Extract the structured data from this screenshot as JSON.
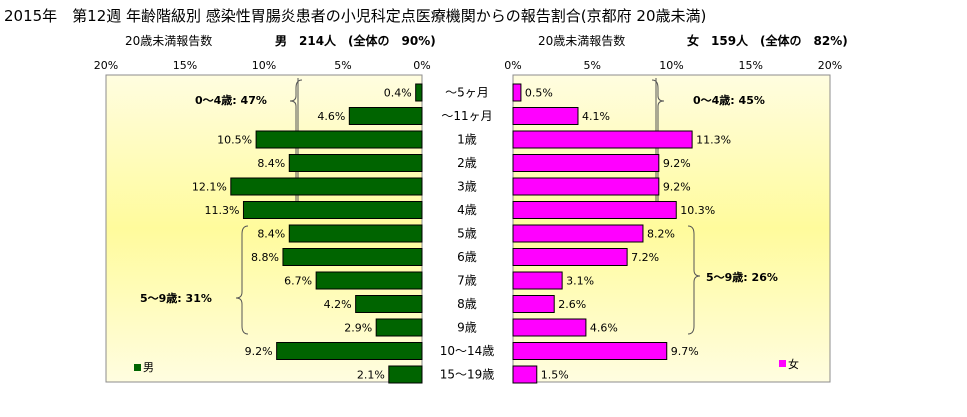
{
  "title": "2015年　第12週 年齢階級別 感染性胃腸炎患者の小児科定点医療機関からの報告割合(京都府 20歳未満)",
  "chart_data": [
    {
      "type": "bar",
      "orientation": "horizontal",
      "side": "left",
      "header_label": "20歳未満報告数",
      "header_summary": "男　214人　(全体の　90%)",
      "series": [
        {
          "name": "男",
          "color": "#006400",
          "values": [
            0.4,
            4.6,
            10.5,
            8.4,
            12.1,
            11.3,
            8.4,
            8.8,
            6.7,
            4.2,
            2.9,
            9.2,
            2.1
          ]
        }
      ],
      "value_labels": [
        "0.4%",
        "4.6%",
        "10.5%",
        "8.4%",
        "12.1%",
        "11.3%",
        "8.4%",
        "8.8%",
        "6.7%",
        "4.2%",
        "2.9%",
        "9.2%",
        "2.1%"
      ],
      "xlim": [
        0,
        20
      ],
      "ticks": [
        "20%",
        "15%",
        "10%",
        "5%",
        "0%"
      ],
      "annotations": [
        "0〜4歳: 47%",
        "5〜9歳: 31%"
      ],
      "legend": "男",
      "legend_position": "bottom-left"
    },
    {
      "type": "bar",
      "orientation": "horizontal",
      "side": "right",
      "header_label": "20歳未満報告数",
      "header_summary": "女　159人　(全体の　82%)",
      "series": [
        {
          "name": "女",
          "color": "#ff00ff",
          "values": [
            0.5,
            4.1,
            11.3,
            9.2,
            9.2,
            10.3,
            8.2,
            7.2,
            3.1,
            2.6,
            4.6,
            9.7,
            1.5
          ]
        }
      ],
      "value_labels": [
        "0.5%",
        "4.1%",
        "11.3%",
        "9.2%",
        "9.2%",
        "10.3%",
        "8.2%",
        "7.2%",
        "3.1%",
        "2.6%",
        "4.6%",
        "9.7%",
        "1.5%"
      ],
      "xlim": [
        0,
        20
      ],
      "ticks": [
        "0%",
        "5%",
        "10%",
        "15%",
        "20%"
      ],
      "annotations": [
        "0〜4歳: 45%",
        "5〜9歳: 26%"
      ],
      "legend": "女",
      "legend_position": "bottom-right"
    }
  ],
  "categories": [
    "〜5ヶ月",
    "〜11ヶ月",
    "1歳",
    "2歳",
    "3歳",
    "4歳",
    "5歳",
    "6歳",
    "7歳",
    "8歳",
    "9歳",
    "10〜14歳",
    "15〜19歳"
  ]
}
